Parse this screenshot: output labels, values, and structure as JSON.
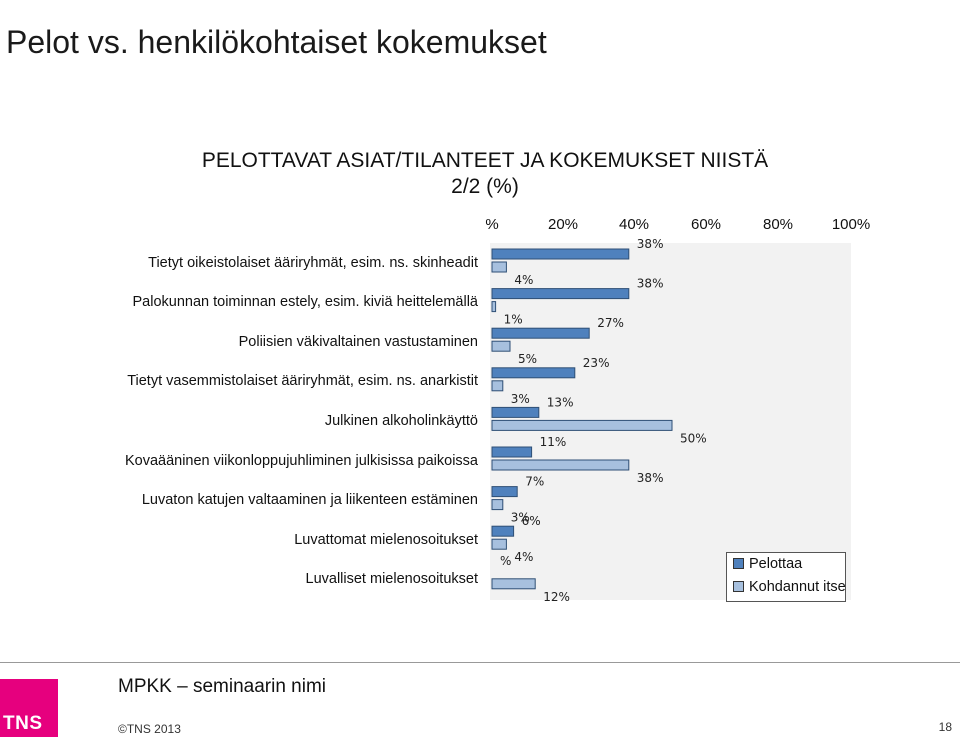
{
  "slide": {
    "title": "Pelot vs. henkilökohtaiset kokemukset",
    "footer_title": "MPKK – seminaarin nimi",
    "copyright": "©TNS 2013",
    "page_number": "18",
    "logo_text": "TNS"
  },
  "colors": {
    "pelottaa": "#4f81bd",
    "kohdannut": "#a7c0de",
    "plot_bg": "#f2f2f2",
    "logo": "#e6007e"
  },
  "chart_data": {
    "type": "bar",
    "orientation": "horizontal",
    "title_lines": [
      "PELOTTAVAT ASIAT/TILANTEET JA KOKEMUKSET NIISTÄ",
      "2/2 (%)"
    ],
    "x_ticks": [
      "%",
      "20%",
      "40%",
      "60%",
      "80%",
      "100%"
    ],
    "xlim": [
      0,
      100
    ],
    "categories": [
      "Tietyt oikeistolaiset ääriryhmät, esim. ns. skinheadit",
      "Palokunnan toiminnan estely, esim. kiviä heittelemällä",
      "Poliisien väkivaltainen vastustaminen",
      "Tietyt vasemmistolaiset ääriryhmät, esim. ns. anarkistit",
      "Julkinen alkoholinkäyttö",
      "Kovaääninen viikonloppujuhliminen julkisissa paikoissa",
      "Luvaton katujen valtaaminen ja liikenteen estäminen",
      "Luvattomat mielenosoitukset",
      "Luvalliset mielenosoitukset"
    ],
    "series": [
      {
        "name": "Pelottaa",
        "values": [
          38,
          38,
          27,
          23,
          13,
          11,
          7,
          6,
          0
        ],
        "labels": [
          "38%",
          "38%",
          "27%",
          "23%",
          "13%",
          "11%",
          "7%",
          "6%",
          "%"
        ]
      },
      {
        "name": "Kohdannut itse",
        "values": [
          4,
          1,
          5,
          3,
          50,
          38,
          3,
          4,
          12
        ],
        "labels": [
          "4%",
          "1%",
          "5%",
          "3%",
          "50%",
          "38%",
          "3%",
          "4%",
          "12%"
        ]
      }
    ],
    "legend_position": "bottom-right"
  }
}
